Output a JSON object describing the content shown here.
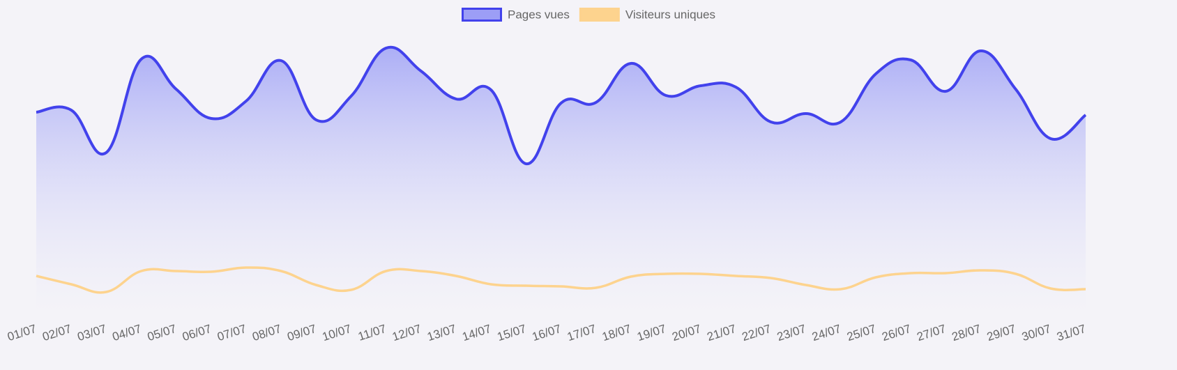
{
  "chart_data": {
    "type": "line",
    "categories": [
      "01/07",
      "02/07",
      "03/07",
      "04/07",
      "05/07",
      "06/07",
      "07/07",
      "08/07",
      "09/07",
      "10/07",
      "11/07",
      "12/07",
      "13/07",
      "14/07",
      "15/07",
      "16/07",
      "17/07",
      "18/07",
      "19/07",
      "20/07",
      "21/07",
      "22/07",
      "23/07",
      "24/07",
      "25/07",
      "26/07",
      "27/07",
      "28/07",
      "29/07",
      "30/07",
      "31/07"
    ],
    "series": [
      {
        "name": "Pages vues",
        "color": "#4242ec",
        "fill": true,
        "values": [
          289,
          292,
          231,
          365,
          322,
          280,
          305,
          363,
          278,
          312,
          381,
          348,
          308,
          321,
          215,
          302,
          303,
          359,
          313,
          327,
          325,
          275,
          287,
          275,
          344,
          364,
          319,
          377,
          322,
          251,
          285
        ]
      },
      {
        "name": "Visiteurs uniques",
        "color": "#fdd38e",
        "fill": false,
        "values": [
          54,
          42,
          31,
          61,
          61,
          60,
          66,
          61,
          41,
          34,
          61,
          61,
          54,
          42,
          40,
          39,
          37,
          53,
          57,
          57,
          54,
          51,
          41,
          35,
          52,
          58,
          58,
          62,
          57,
          36,
          35
        ]
      }
    ],
    "ylim": [
      0,
      400
    ],
    "legend": "top",
    "grid": false
  }
}
